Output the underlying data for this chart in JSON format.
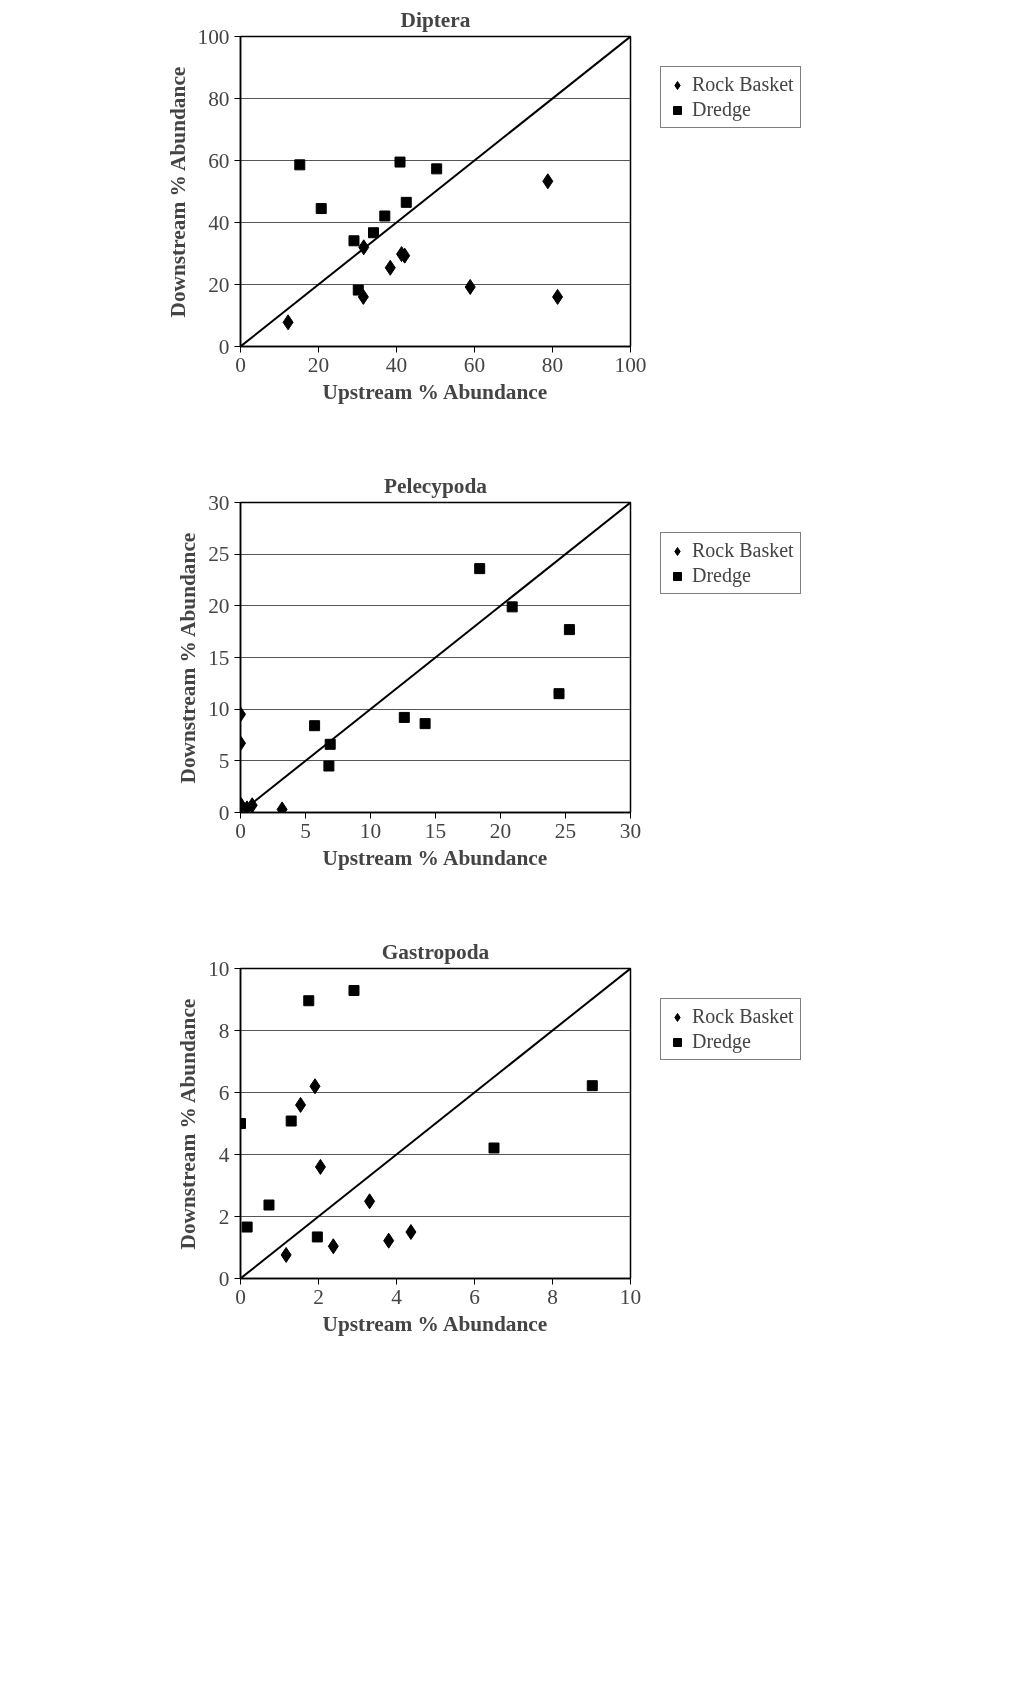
{
  "chart_data": [
    {
      "type": "scatter",
      "title": "Diptera",
      "xlabel": "Upstream % Abundance",
      "ylabel": "Downstream % Abundance",
      "xlim": [
        0,
        100
      ],
      "ylim": [
        0,
        100
      ],
      "xticks": [
        0,
        20,
        40,
        60,
        80,
        100
      ],
      "yticks": [
        0,
        20,
        40,
        60,
        80,
        100
      ],
      "grid": "y",
      "legend": "right",
      "series": [
        {
          "name": "Rock Basket",
          "color": "#000000",
          "marker": "diamond",
          "x": [
            12.2,
            31.6,
            31.5,
            38.4,
            41.3,
            42.1,
            58.9,
            78.8,
            81.3
          ],
          "values": [
            7.8,
            32,
            16,
            25.4,
            29.8,
            29.3,
            19.2,
            53.3,
            16
          ]
        },
        {
          "name": "Dredge",
          "color": "#000000",
          "marker": "square",
          "x": [
            15.2,
            20.7,
            29.1,
            34.1,
            37,
            40.9,
            42.5,
            50.3,
            30.2
          ],
          "values": [
            58.6,
            44.5,
            34.1,
            36.7,
            42.1,
            59.5,
            46.5,
            57.3,
            18.2
          ]
        },
        {
          "type": "line",
          "color": "#000000",
          "x": [
            0,
            100
          ],
          "values": [
            0,
            100
          ]
        }
      ]
    },
    {
      "type": "scatter",
      "title": "Pelecypoda",
      "xlabel": "Upstream % Abundance",
      "ylabel": "Downstream % Abundance",
      "xlim": [
        0,
        30
      ],
      "ylim": [
        0,
        30
      ],
      "xticks": [
        0,
        5,
        10,
        15,
        20,
        25,
        30
      ],
      "yticks": [
        0,
        5,
        10,
        15,
        20,
        25,
        30
      ],
      "grid": "y",
      "legend": "right",
      "series": [
        {
          "name": "Rock Basket",
          "color": "#000000",
          "marker": "diamond",
          "x": [
            0,
            0,
            0,
            0.5,
            0.9,
            3.2
          ],
          "values": [
            9.5,
            6.7,
            0.8,
            0.4,
            0.7,
            0.3
          ]
        },
        {
          "name": "Dredge",
          "color": "#000000",
          "marker": "square",
          "x": [
            5.7,
            6.9,
            6.8,
            12.6,
            14.2,
            18.4,
            20.9,
            25.3,
            24.5
          ],
          "values": [
            8.4,
            6.6,
            4.5,
            9.2,
            8.6,
            23.6,
            19.9,
            17.7,
            11.5
          ]
        },
        {
          "type": "line",
          "color": "#000000",
          "x": [
            0,
            30
          ],
          "values": [
            0,
            30
          ]
        }
      ]
    },
    {
      "type": "scatter",
      "title": "Gastropoda",
      "xlabel": "Upstream % Abundance",
      "ylabel": "Downstream % Abundance",
      "xlim": [
        0,
        10
      ],
      "ylim": [
        0,
        10
      ],
      "xticks": [
        0,
        2,
        4,
        6,
        8,
        10
      ],
      "yticks": [
        0,
        2,
        4,
        6,
        8,
        10
      ],
      "grid": "y",
      "legend": "right",
      "series": [
        {
          "name": "Rock Basket",
          "color": "#000000",
          "marker": "diamond",
          "x": [
            1.17,
            1.54,
            1.91,
            2.05,
            2.38,
            3.31,
            3.8,
            4.37
          ],
          "values": [
            0.76,
            5.6,
            6.2,
            3.6,
            1.04,
            2.49,
            1.22,
            1.5
          ]
        },
        {
          "name": "Dredge",
          "color": "#000000",
          "marker": "square",
          "x": [
            0,
            0.17,
            0.73,
            1.3,
            1.75,
            1.97,
            2.91,
            6.5,
            9.02
          ],
          "values": [
            5,
            1.66,
            2.37,
            5.08,
            8.96,
            1.34,
            9.29,
            4.21,
            6.22
          ]
        },
        {
          "type": "line",
          "color": "#000000",
          "x": [
            0,
            10
          ],
          "values": [
            0,
            10
          ]
        }
      ]
    }
  ]
}
